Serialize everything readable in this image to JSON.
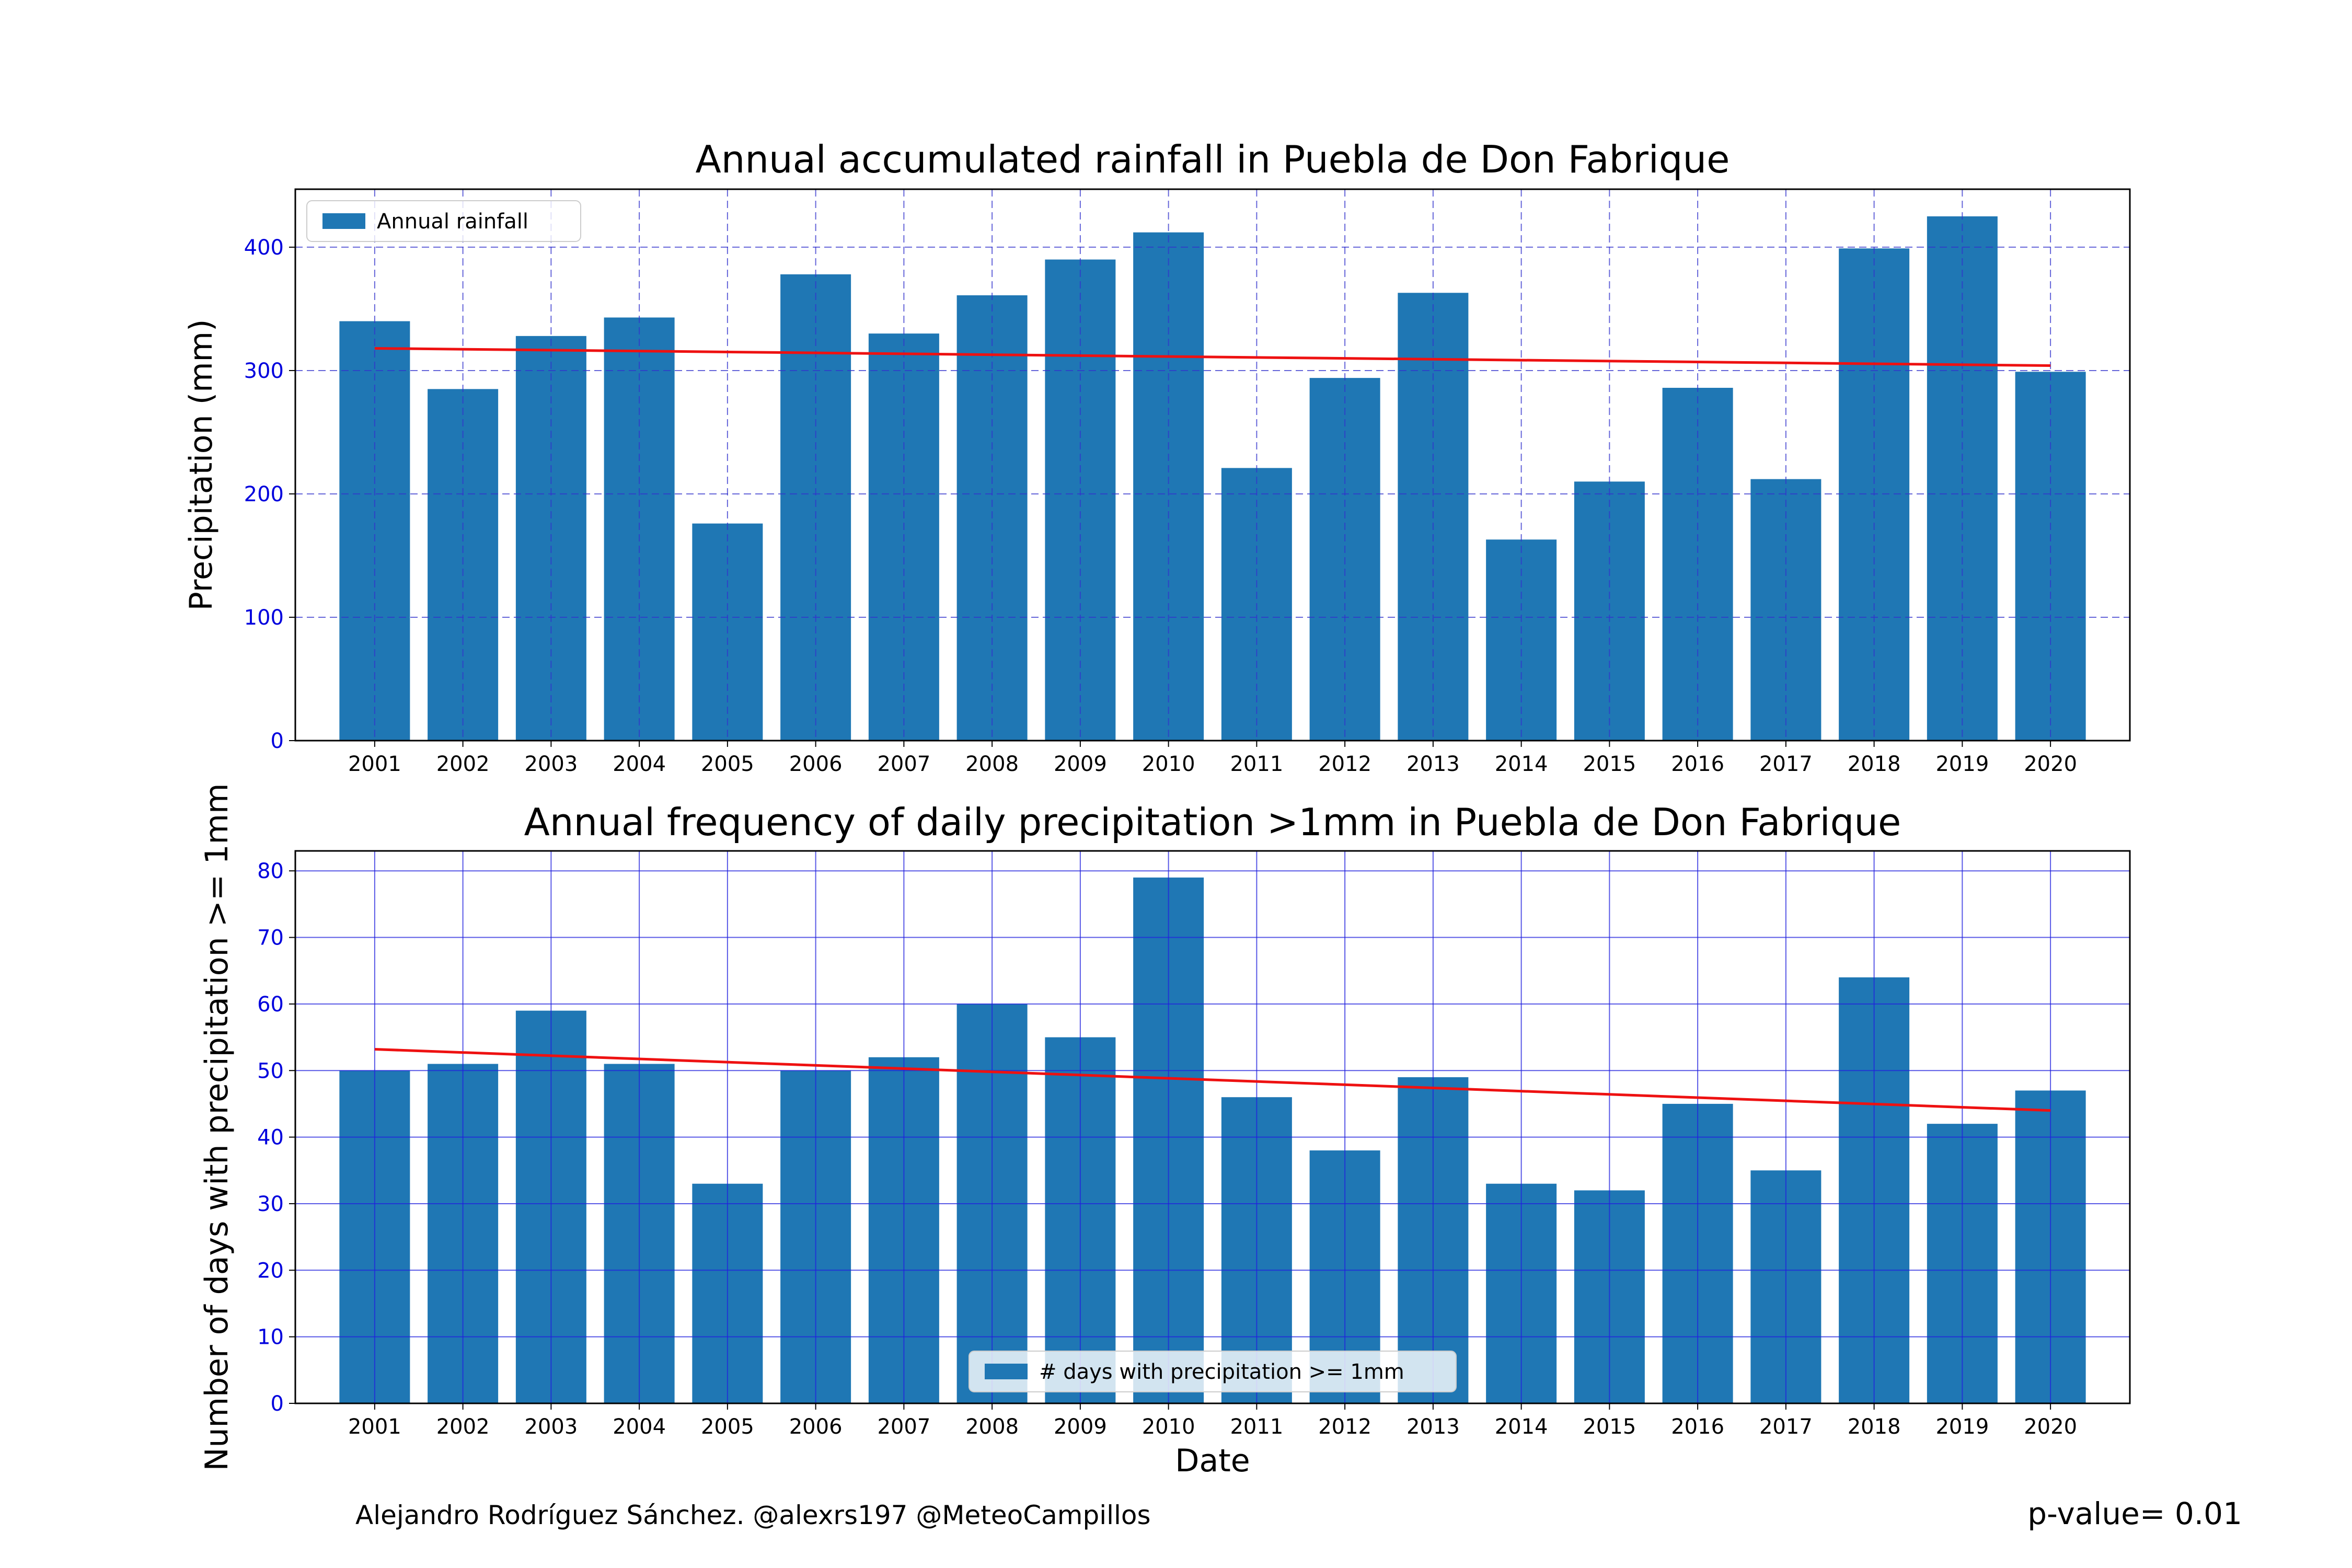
{
  "chart_data": [
    {
      "type": "bar",
      "title": "Annual accumulated rainfall in Puebla de Don Fabrique",
      "xlabel": "",
      "ylabel": "Precipitation (mm)",
      "categories": [
        "2001",
        "2002",
        "2003",
        "2004",
        "2005",
        "2006",
        "2007",
        "2008",
        "2009",
        "2010",
        "2011",
        "2012",
        "2013",
        "2014",
        "2015",
        "2016",
        "2017",
        "2018",
        "2019",
        "2020"
      ],
      "series": [
        {
          "name": "Annual rainfall",
          "values": [
            340,
            285,
            328,
            343,
            176,
            378,
            330,
            361,
            390,
            412,
            221,
            294,
            363,
            163,
            210,
            286,
            212,
            399,
            425,
            299
          ]
        }
      ],
      "trend": {
        "start": 318,
        "end": 304
      },
      "ylim": [
        0,
        447
      ],
      "yticks": [
        0,
        100,
        200,
        300,
        400
      ],
      "grid": true,
      "grid_style": "dashed",
      "legend_position": "upper left",
      "bar_color": "#1f77b4",
      "trend_color": "#ee1111",
      "tick_color": "#0000dd",
      "grid_color": "#3333cc"
    },
    {
      "type": "bar",
      "title": "Annual frequency of daily precipitation >1mm in Puebla de Don Fabrique",
      "xlabel": "Date",
      "ylabel": "Number of days with precipitation >= 1mm",
      "categories": [
        "2001",
        "2002",
        "2003",
        "2004",
        "2005",
        "2006",
        "2007",
        "2008",
        "2009",
        "2010",
        "2011",
        "2012",
        "2013",
        "2014",
        "2015",
        "2016",
        "2017",
        "2018",
        "2019",
        "2020"
      ],
      "series": [
        {
          "name": "# days with precipitation >= 1mm",
          "values": [
            50,
            51,
            59,
            51,
            33,
            50,
            52,
            60,
            55,
            79,
            46,
            38,
            49,
            33,
            32,
            45,
            35,
            64,
            42,
            47
          ]
        }
      ],
      "trend": {
        "start": 53.2,
        "end": 44
      },
      "ylim": [
        0,
        83
      ],
      "yticks": [
        0,
        10,
        20,
        30,
        40,
        50,
        60,
        70,
        80
      ],
      "grid": true,
      "grid_style": "solid",
      "legend_position": "lower center",
      "bar_color": "#1f77b4",
      "trend_color": "#ee1111",
      "tick_color": "#0000dd",
      "grid_color": "#2222dd"
    }
  ],
  "footer": {
    "credit": "Alejandro Rodríguez Sánchez. @alexrs197 @MeteoCampillos",
    "pvalue": "p-value= 0.01"
  }
}
